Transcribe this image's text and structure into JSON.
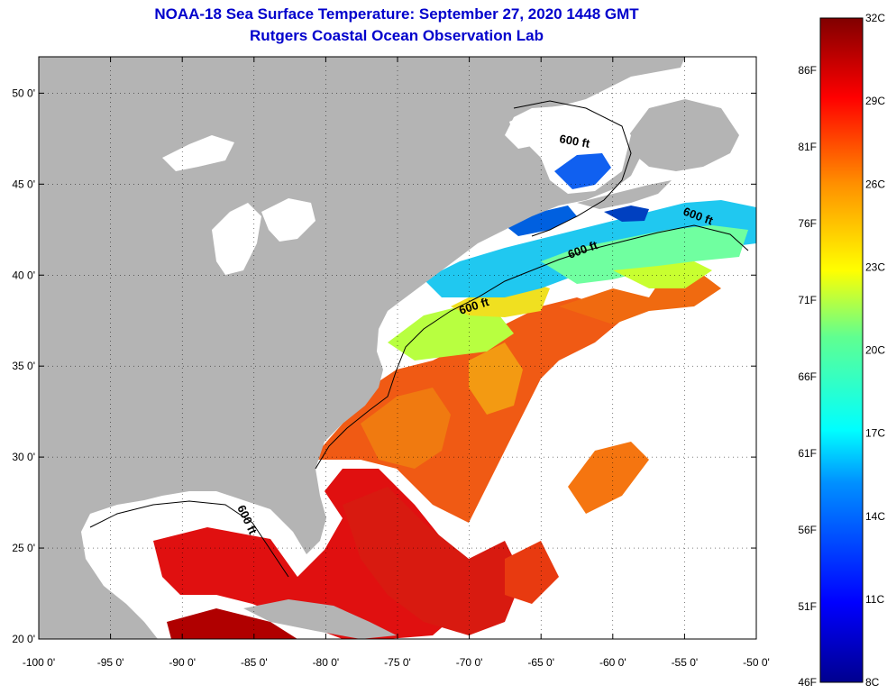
{
  "title": "NOAA-18 Sea Surface Temperature:  September 27, 2020 1448 GMT",
  "subtitle": "Rutgers Coastal Ocean Observation Lab",
  "map": {
    "lon_range": [
      -100,
      -50
    ],
    "lat_range": [
      20,
      52
    ],
    "lon_ticks": [
      "-100 0'",
      "-95 0'",
      "-90 0'",
      "-85 0'",
      "-80 0'",
      "-75 0'",
      "-70 0'",
      "-65 0'",
      "-60 0'",
      "-55 0'",
      "-50 0'"
    ],
    "lat_ticks": [
      "20 0'",
      "25 0'",
      "30 0'",
      "35 0'",
      "40 0'",
      "45 0'",
      "50 0'"
    ],
    "contour_labels": [
      "600 ft",
      "600 ft",
      "600 ft",
      "600 ft",
      "600 ft"
    ],
    "colors": {
      "land": "#b4b4b4",
      "missing": "#ffffff"
    }
  },
  "colorbar": {
    "celsius_labels": [
      "32C",
      "29C",
      "26C",
      "23C",
      "20C",
      "17C",
      "14C",
      "11C",
      "8C"
    ],
    "fahrenheit_labels": [
      "86F",
      "81F",
      "76F",
      "71F",
      "66F",
      "61F",
      "56F",
      "51F",
      "46F"
    ],
    "range_celsius": [
      8,
      32
    ]
  }
}
